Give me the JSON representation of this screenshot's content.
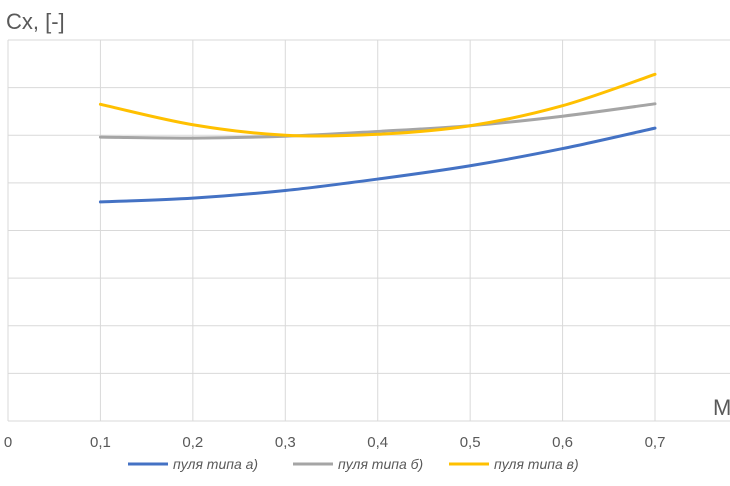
{
  "chart_data": {
    "type": "line",
    "ylabel": "Cx, [-]",
    "xlabel": "M",
    "x": [
      0.1,
      0.2,
      0.3,
      0.4,
      0.5,
      0.6,
      0.7
    ],
    "x_tick_labels": [
      "0",
      "0,1",
      "0,2",
      "0,3",
      "0,4",
      "0,5",
      "0,6",
      "0,7"
    ],
    "xlim": [
      0,
      0.78
    ],
    "ylim": [
      0,
      8
    ],
    "y_gridlines": 8,
    "grid": true,
    "legend_position": "bottom",
    "series": [
      {
        "name": "пуля типа а)",
        "color": "#4472C4",
        "values": [
          4.6,
          4.68,
          4.84,
          5.08,
          5.36,
          5.72,
          6.15
        ]
      },
      {
        "name": "пуля типа б)",
        "color": "#A5A5A5",
        "values": [
          5.96,
          5.94,
          5.98,
          6.08,
          6.2,
          6.4,
          6.66
        ]
      },
      {
        "name": "пуля типа в)",
        "color": "#FFC000",
        "values": [
          6.65,
          6.22,
          6.0,
          6.02,
          6.2,
          6.62,
          7.28
        ]
      }
    ]
  }
}
